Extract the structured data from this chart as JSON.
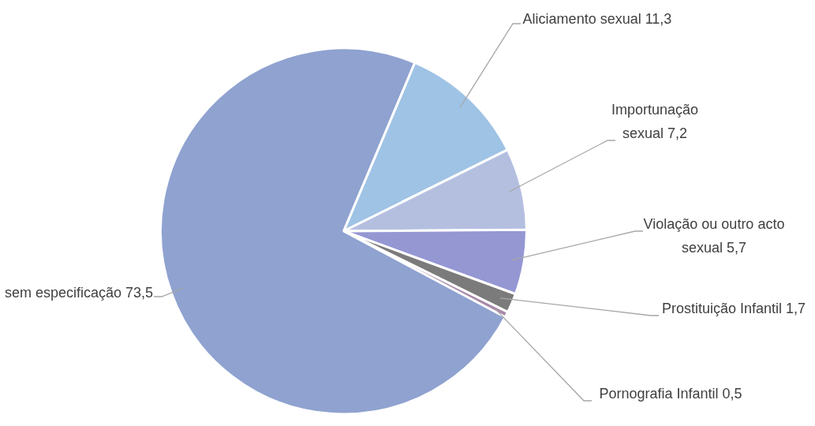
{
  "chart_data": {
    "type": "pie",
    "categories": [
      "Aliciamento sexual",
      "Importunação sexual",
      "Violação ou outro acto sexual",
      "Prostituição Infantil",
      "Pornografia Infantil",
      "sem especificação"
    ],
    "values": [
      11.3,
      7.2,
      5.7,
      1.7,
      0.5,
      73.5
    ],
    "value_labels": [
      "11,3",
      "7,2",
      "5,7",
      "1,7",
      "0,5",
      "73,5"
    ],
    "colors": [
      "#9fc3e5",
      "#b4bfe0",
      "#9597d3",
      "#7b7b7b",
      "#a889a8",
      "#8fa2d0"
    ],
    "legend": false
  }
}
